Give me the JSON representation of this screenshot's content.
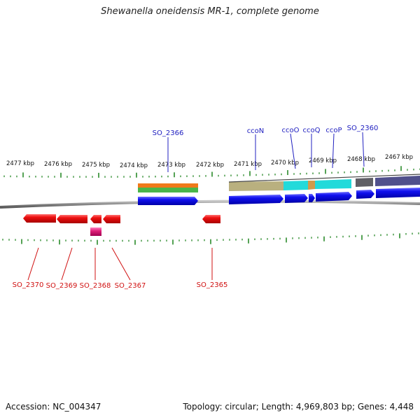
{
  "title": "Shewanella oneidensis MR-1, complete genome",
  "footer": {
    "accession": "Accession: NC_004347",
    "stats": "Topology: circular; Length: 4,969,803 bp; Genes: 4,448"
  },
  "scale": {
    "labels": [
      "2477 kbp",
      "2476 kbp",
      "2475 kbp",
      "2474 kbp",
      "2473 kbp",
      "2472 kbp",
      "2471 kbp",
      "2470 kbp",
      "2469 kbp",
      "2468 kbp",
      "2467 kbp"
    ]
  },
  "genes_top": [
    {
      "label": "SO_2366"
    },
    {
      "label": "ccoN"
    },
    {
      "label": "ccoO"
    },
    {
      "label": "ccoQ"
    },
    {
      "label": "ccoP"
    },
    {
      "label": "SO_2360"
    }
  ],
  "genes_bottom": [
    {
      "label": "SO_2370"
    },
    {
      "label": "SO_2369"
    },
    {
      "label": "SO_2368"
    },
    {
      "label": "SO_2367"
    },
    {
      "label": "SO_2365"
    }
  ],
  "colors": {
    "forward_gene": "#1010ee",
    "reverse_gene": "#ee1010",
    "reverse_gene_alt": "#e0207a",
    "tick": "#2a8a2a",
    "top_label": "#2020c0",
    "bottom_label": "#d01010",
    "backbone": "#888888"
  }
}
